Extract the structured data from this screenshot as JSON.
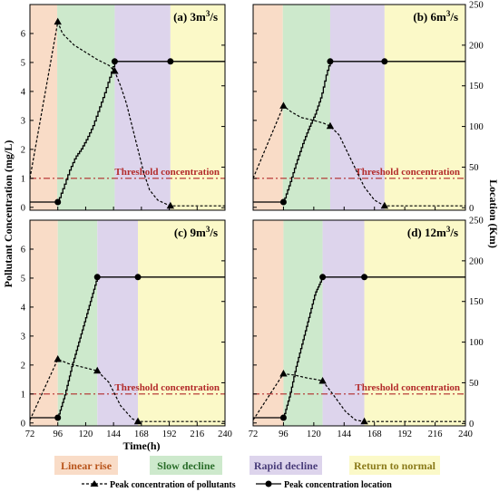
{
  "figure": {
    "y_left_label": "Pollutant Concentration (mg/L)",
    "y_right_label": "Location (Km)",
    "x_label": "Time(h)",
    "threshold_label": "Threshold concentration",
    "x_ticks": [
      72,
      96,
      120,
      144,
      168,
      192,
      216,
      240
    ],
    "y_left_ticks": [
      0,
      1,
      2,
      3,
      4,
      5,
      6
    ],
    "y_right_ticks": [
      0,
      50,
      100,
      150,
      200,
      250
    ],
    "phase_colors": {
      "linear_rise": "#f9dcc7",
      "slow_decline": "#cde9cc",
      "rapid_decline": "#ddd4ec",
      "return_to_normal": "#fbf9c8"
    },
    "threshold_color": "#b22a2a",
    "legend": {
      "linear_rise": "Linear rise",
      "slow_decline": "Slow decline",
      "rapid_decline": "Rapid decline",
      "return_to_normal": "Return to normal",
      "series_concentration": "Peak concentration of pollutants",
      "series_location": "Peak concentration location"
    }
  },
  "chart_data": [
    {
      "type": "line",
      "panel_label": "(a) 3m",
      "panel_unit_sup": "3",
      "panel_unit_tail": "/s",
      "xlim": [
        72,
        240
      ],
      "ylim_left": [
        -0.1,
        7
      ],
      "ylim_right": [
        -3,
        250
      ],
      "threshold": 1.0,
      "phases": [
        [
          72,
          95.5
        ],
        [
          95.5,
          145
        ],
        [
          145,
          193
        ],
        [
          193,
          240
        ]
      ],
      "series": [
        {
          "key": "concentration",
          "axis": "left",
          "x": [
            72,
            96,
            100,
            110,
            120,
            130,
            140,
            145,
            150,
            155,
            160,
            165,
            170,
            175,
            182,
            190,
            193,
            200,
            215,
            240
          ],
          "y": [
            1.0,
            6.4,
            6.0,
            5.6,
            5.35,
            5.1,
            4.9,
            4.7,
            4.2,
            3.6,
            2.8,
            2.0,
            1.2,
            0.6,
            0.25,
            0.1,
            0.05,
            0.05,
            0.05,
            0.05
          ],
          "markers_x": [
            96,
            145,
            193
          ]
        },
        {
          "key": "location",
          "axis": "right",
          "x": [
            72,
            96,
            101,
            106,
            111,
            116,
            121,
            126,
            131,
            136,
            141,
            145,
            193,
            240
          ],
          "y": [
            7,
            7,
            26,
            46,
            62,
            72,
            85,
            100,
            120,
            140,
            162,
            180,
            180,
            180
          ],
          "markers_x": [
            96,
            145,
            193
          ]
        }
      ]
    },
    {
      "type": "line",
      "panel_label": "(b) 6m",
      "panel_unit_sup": "3",
      "panel_unit_tail": "/s",
      "xlim": [
        72,
        240
      ],
      "ylim_left": [
        -0.1,
        7
      ],
      "ylim_right": [
        -3,
        250
      ],
      "threshold": 1.0,
      "phases": [
        [
          72,
          95.5
        ],
        [
          95.5,
          133
        ],
        [
          133,
          176
        ],
        [
          176,
          240
        ]
      ],
      "series": [
        {
          "key": "concentration",
          "axis": "left",
          "x": [
            72,
            96,
            102,
            110,
            120,
            128,
            133,
            140,
            150,
            160,
            168,
            176,
            190,
            240
          ],
          "y": [
            1.0,
            3.5,
            3.3,
            3.1,
            3.0,
            2.9,
            2.8,
            2.5,
            1.6,
            0.7,
            0.25,
            0.05,
            0.05,
            0.05
          ],
          "markers_x": [
            96,
            133,
            176
          ]
        },
        {
          "key": "location",
          "axis": "right",
          "x": [
            72,
            96,
            101,
            106,
            111,
            116,
            121,
            126,
            130,
            133,
            176,
            240
          ],
          "y": [
            7,
            7,
            30,
            55,
            78,
            98,
            115,
            138,
            165,
            180,
            180,
            180
          ],
          "markers_x": [
            96,
            133,
            176
          ]
        }
      ]
    },
    {
      "type": "line",
      "panel_label": "(c) 9m",
      "panel_unit_sup": "3",
      "panel_unit_tail": "/s",
      "xlim": [
        72,
        240
      ],
      "ylim_left": [
        -0.1,
        7
      ],
      "ylim_right": [
        -3,
        250
      ],
      "threshold": 1.0,
      "phases": [
        [
          72,
          96
        ],
        [
          96,
          130
        ],
        [
          130,
          165
        ],
        [
          165,
          240
        ]
      ],
      "series": [
        {
          "key": "concentration",
          "axis": "left",
          "x": [
            72,
            96,
            105,
            115,
            125,
            130,
            140,
            150,
            160,
            165,
            180,
            240
          ],
          "y": [
            0.1,
            2.2,
            2.05,
            1.95,
            1.85,
            1.8,
            1.4,
            0.6,
            0.15,
            0.05,
            0.05,
            0.05
          ],
          "markers_x": [
            96,
            130,
            165
          ]
        },
        {
          "key": "location",
          "axis": "right",
          "x": [
            72,
            96,
            102,
            108,
            114,
            120,
            126,
            130,
            165,
            240
          ],
          "y": [
            7,
            7,
            35,
            70,
            100,
            130,
            160,
            180,
            180,
            180
          ],
          "markers_x": [
            96,
            130,
            165
          ]
        }
      ]
    },
    {
      "type": "line",
      "panel_label": "(d) 12m",
      "panel_unit_sup": "3",
      "panel_unit_tail": "/s",
      "xlim": [
        72,
        240
      ],
      "ylim_left": [
        -0.1,
        7
      ],
      "ylim_right": [
        -3,
        250
      ],
      "threshold": 1.0,
      "phases": [
        [
          72,
          96
        ],
        [
          96,
          127
        ],
        [
          127,
          160
        ],
        [
          160,
          240
        ]
      ],
      "series": [
        {
          "key": "concentration",
          "axis": "left",
          "x": [
            72,
            96,
            105,
            115,
            122,
            127,
            135,
            145,
            153,
            160,
            175,
            240
          ],
          "y": [
            0.1,
            1.7,
            1.65,
            1.55,
            1.5,
            1.45,
            1.0,
            0.4,
            0.1,
            0.05,
            0.05,
            0.05
          ],
          "markers_x": [
            96,
            127,
            160
          ]
        },
        {
          "key": "location",
          "axis": "right",
          "x": [
            72,
            96,
            101,
            106,
            111,
            116,
            121,
            127,
            160,
            240
          ],
          "y": [
            7,
            7,
            35,
            70,
            100,
            130,
            160,
            180,
            180,
            180
          ],
          "markers_x": [
            96,
            127,
            160
          ]
        }
      ]
    }
  ]
}
